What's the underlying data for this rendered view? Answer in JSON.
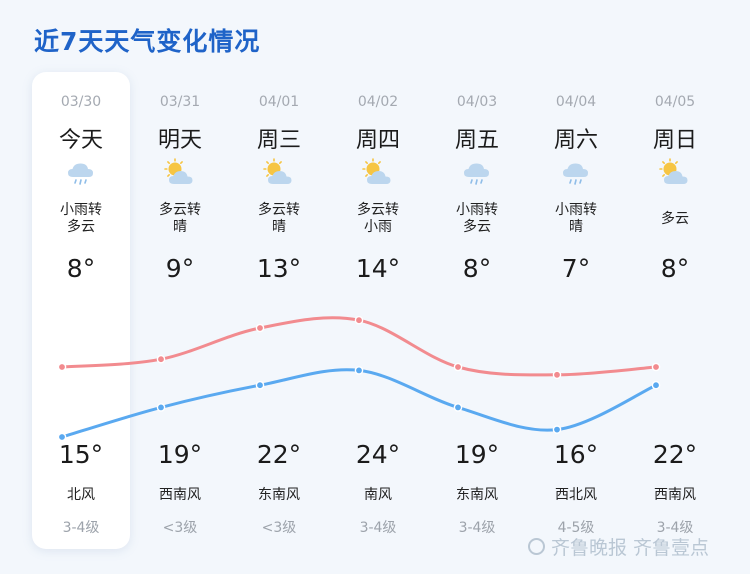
{
  "title": "近7天天气变化情况",
  "days": [
    {
      "date": "03/30",
      "day": "今天",
      "icon": "light-rain-icon",
      "condition": [
        "小雨转",
        "多云"
      ],
      "high": "8°",
      "low": "15°",
      "wind": "北风",
      "level": "3-4级",
      "high_value": 8,
      "low_value": 15
    },
    {
      "date": "03/31",
      "day": "明天",
      "icon": "partly-cloudy-icon",
      "condition": [
        "多云转",
        "晴"
      ],
      "high": "9°",
      "low": "19°",
      "wind": "西南风",
      "level": "<3级",
      "high_value": 9,
      "low_value": 19
    },
    {
      "date": "04/01",
      "day": "周三",
      "icon": "partly-cloudy-icon",
      "condition": [
        "多云转",
        "晴"
      ],
      "high": "13°",
      "low": "22°",
      "wind": "东南风",
      "level": "<3级",
      "high_value": 13,
      "low_value": 22
    },
    {
      "date": "04/02",
      "day": "周四",
      "icon": "partly-cloudy-icon",
      "condition": [
        "多云转",
        "小雨"
      ],
      "high": "14°",
      "low": "24°",
      "wind": "南风",
      "level": "3-4级",
      "high_value": 14,
      "low_value": 24
    },
    {
      "date": "04/03",
      "day": "周五",
      "icon": "light-rain-icon",
      "condition": [
        "小雨转",
        "多云"
      ],
      "high": "8°",
      "low": "19°",
      "wind": "东南风",
      "level": "3-4级",
      "high_value": 8,
      "low_value": 19
    },
    {
      "date": "04/04",
      "day": "周六",
      "icon": "light-rain-icon",
      "condition": [
        "小雨转",
        "晴"
      ],
      "high": "7°",
      "low": "16°",
      "wind": "西北风",
      "level": "4-5级",
      "high_value": 7,
      "low_value": 16
    },
    {
      "date": "04/05",
      "day": "周日",
      "icon": "partly-cloudy-icon",
      "condition": [
        "多云"
      ],
      "high": "8°",
      "low": "22°",
      "wind": "西南风",
      "level": "3-4级",
      "high_value": 8,
      "low_value": 22
    }
  ],
  "colors": {
    "title": "#1f63c8",
    "line_upper": "#f28b8f",
    "line_lower": "#5aa9f0",
    "sun": "#f6c543",
    "cloud": "#bcd6ee"
  },
  "watermark": "齐鲁晚报  齐鲁壹点"
}
